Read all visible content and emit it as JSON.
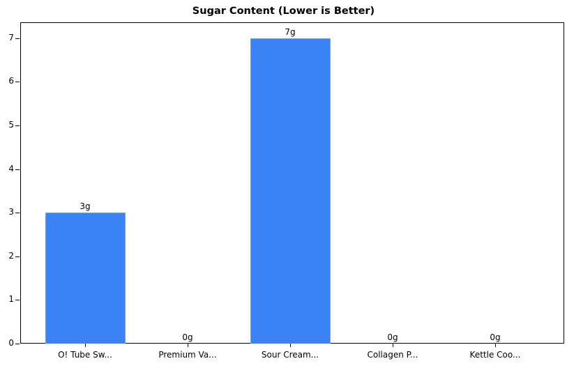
{
  "chart_data": {
    "type": "bar",
    "title": "Sugar Content (Lower is Better)",
    "xlabel": "",
    "ylabel": "",
    "categories": [
      "O! Tube Sw...",
      "Premium Va...",
      "Sour Cream...",
      "Collagen P...",
      "Kettle Coo..."
    ],
    "values": [
      3,
      0,
      7,
      0,
      0
    ],
    "value_labels": [
      "3g",
      "0g",
      "7g",
      "0g",
      "0g"
    ],
    "ylim": [
      0,
      7.35
    ],
    "yticks": [
      "0",
      "1",
      "2",
      "3",
      "4",
      "5",
      "6",
      "7"
    ],
    "grid": false,
    "legend": null,
    "bar_color": "#3b82f6"
  }
}
